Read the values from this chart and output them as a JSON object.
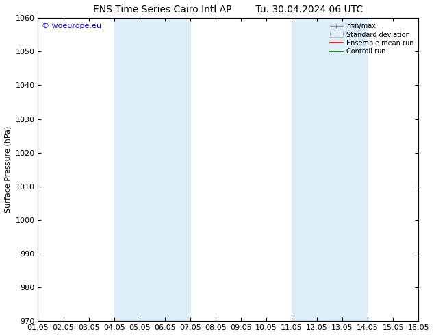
{
  "title_left": "ENS Time Series Cairo Intl AP",
  "title_right": "Tu. 30.04.2024 06 UTC",
  "ylabel": "Surface Pressure (hPa)",
  "ylim": [
    970,
    1060
  ],
  "yticks": [
    970,
    980,
    990,
    1000,
    1010,
    1020,
    1030,
    1040,
    1050,
    1060
  ],
  "xtick_labels": [
    "01.05",
    "02.05",
    "03.05",
    "04.05",
    "05.05",
    "06.05",
    "07.05",
    "08.05",
    "09.05",
    "10.05",
    "11.05",
    "12.05",
    "13.05",
    "14.05",
    "15.05",
    "16.05"
  ],
  "watermark": "© woeurope.eu",
  "watermark_color": "#0000cc",
  "shaded_bands": [
    {
      "xstart": 3,
      "xend": 6,
      "color": "#ddeef8"
    },
    {
      "xstart": 10,
      "xend": 13,
      "color": "#ddeef8"
    }
  ],
  "background_color": "#ffffff",
  "plot_bg_color": "#ffffff",
  "title_fontsize": 10,
  "label_fontsize": 8,
  "tick_fontsize": 8,
  "watermark_fontsize": 8,
  "legend_fontsize": 7
}
